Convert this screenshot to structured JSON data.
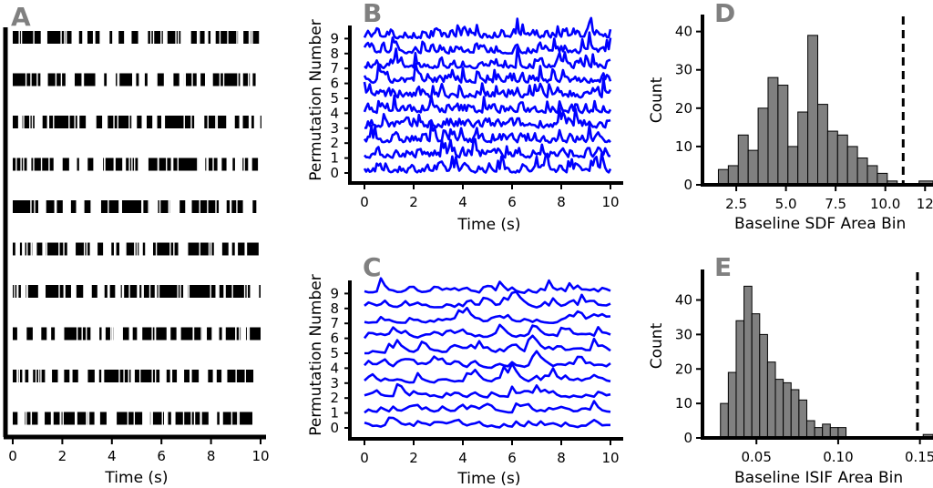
{
  "chart_data": [
    {
      "panel": "A",
      "type": "raster",
      "title": "",
      "xlabel": "Time (s)",
      "ylabel": "",
      "xlim": [
        0,
        10
      ],
      "xticks": [
        "0",
        "2",
        "4",
        "6",
        "8",
        "10"
      ],
      "rows": 10
    },
    {
      "panel": "B",
      "type": "line",
      "title": "",
      "xlabel": "Time (s)",
      "ylabel": "Permutation Number",
      "xlim": [
        0,
        10
      ],
      "xticks": [
        "0",
        "2",
        "4",
        "6",
        "8",
        "10"
      ],
      "yticks": [
        "0",
        "1",
        "2",
        "3",
        "4",
        "5",
        "6",
        "7",
        "8",
        "9"
      ],
      "series_color": "#0000ff",
      "series_count": 10
    },
    {
      "panel": "C",
      "type": "line",
      "title": "",
      "xlabel": "Time (s)",
      "ylabel": "Permutation Number",
      "xlim": [
        0,
        10
      ],
      "xticks": [
        "0",
        "2",
        "4",
        "6",
        "8",
        "10"
      ],
      "yticks": [
        "0",
        "1",
        "2",
        "3",
        "4",
        "5",
        "6",
        "7",
        "8",
        "9"
      ],
      "series_color": "#0000ff",
      "series_count": 10
    },
    {
      "panel": "D",
      "type": "bar",
      "title": "",
      "xlabel": "Baseline SDF Area Bin",
      "ylabel": "Count",
      "xlim": [
        0.8,
        12.4
      ],
      "ylim": [
        0,
        43
      ],
      "xticks": [
        "2.5",
        "5.0",
        "7.5",
        "10.0",
        "12"
      ],
      "yticks": [
        "0",
        "10",
        "20",
        "30",
        "40"
      ],
      "bin_edges": [
        1.6,
        2.1,
        2.6,
        3.1,
        3.6,
        4.1,
        4.6,
        5.1,
        5.6,
        6.1,
        6.6,
        7.1,
        7.6,
        8.1,
        8.6,
        9.1,
        9.6,
        10.1,
        10.6,
        11.1
      ],
      "values": [
        4,
        5,
        13,
        9,
        20,
        28,
        26,
        10,
        19,
        39,
        21,
        14,
        13,
        10,
        7,
        5,
        3,
        1,
        0
      ],
      "threshold": 10.9,
      "extra_bar": {
        "x0": 11.7,
        "x1": 12.4,
        "value": 1
      }
    },
    {
      "panel": "E",
      "type": "bar",
      "title": "",
      "xlabel": "Baseline ISIF Area Bin",
      "ylabel": "Count",
      "xlim": [
        0.017,
        0.158
      ],
      "ylim": [
        0,
        47
      ],
      "xticks": [
        "0.05",
        "0.10",
        "0.15"
      ],
      "yticks": [
        "0",
        "10",
        "20",
        "30",
        "40"
      ],
      "bin_edges": [
        0.028,
        0.0328,
        0.0376,
        0.0424,
        0.0472,
        0.052,
        0.0568,
        0.0616,
        0.0664,
        0.0712,
        0.076,
        0.0808,
        0.0856,
        0.0904,
        0.0952,
        0.1,
        0.1048,
        0.1096,
        0.1144,
        0.1192,
        0.124
      ],
      "values": [
        10,
        19,
        34,
        44,
        36,
        30,
        22,
        17,
        16,
        14,
        11,
        5,
        3,
        4,
        3,
        3,
        0,
        0,
        0,
        0
      ],
      "threshold": 0.1485,
      "extra_bar": {
        "x0": 0.152,
        "x1": 0.158,
        "value": 1
      }
    }
  ],
  "colors": {
    "hist_fill": "#808080",
    "axis": "#000000",
    "label_gray": "#808080",
    "line_blue": "#0000ff"
  },
  "panel_labels": [
    "A",
    "B",
    "C",
    "D",
    "E"
  ]
}
